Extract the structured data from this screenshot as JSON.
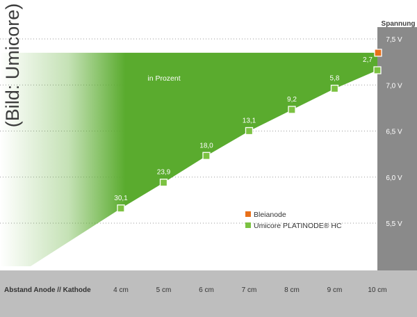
{
  "credit": "(Bild: Umicore)",
  "colors": {
    "green": "#5aab2e",
    "square_fill": "#7cc242",
    "orange": "#e8701a",
    "axis_gray": "#8a8a8a",
    "bottom_band": "#bebebe",
    "text_dark": "#333333",
    "text_light": "#ffffff"
  },
  "chart_data": {
    "type": "area",
    "ylabel": "Spannung",
    "xlabel": "Abstand Anode // Kathode",
    "x_tick_labels": [
      "4 cm",
      "5 cm",
      "6 cm",
      "7 cm",
      "8 cm",
      "9 cm",
      "10 cm"
    ],
    "y_ticks": [
      5.5,
      6.0,
      6.5,
      7.0,
      7.5
    ],
    "y_tick_labels": [
      "5,5 V",
      "6,0 V",
      "6,5 V",
      "7,0 V",
      "7,5 V"
    ],
    "ylim": [
      5.0,
      7.5
    ],
    "grid": true,
    "annotation": "in Prozent",
    "legend_position": "bottom-right",
    "series": [
      {
        "name": "Bleianode",
        "x": [
          10
        ],
        "values": [
          7.35
        ],
        "color": "#e8701a"
      },
      {
        "name": "Umicore PLATINODE® HC",
        "x": [
          4,
          5,
          6,
          7,
          8,
          9,
          10
        ],
        "values": [
          5.66,
          5.94,
          6.23,
          6.5,
          6.73,
          6.96,
          7.16
        ],
        "color": "#7cc242"
      }
    ],
    "data_labels": [
      "30,1",
      "23,9",
      "18,0",
      "13,1",
      "9,2",
      "5,8",
      "2,7"
    ]
  }
}
